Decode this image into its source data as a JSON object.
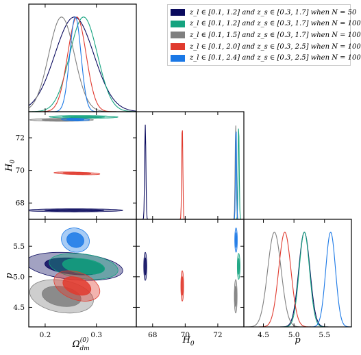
{
  "chart_data": {
    "type": "corner",
    "parameters": [
      {
        "key": "omega",
        "label": "Ω_dm^(0)",
        "range": [
          0.168,
          0.378
        ],
        "ticks": [
          0.2,
          0.3
        ],
        "tick_labels": [
          "0.2",
          "0.3"
        ]
      },
      {
        "key": "H0",
        "label": "H_0",
        "range": [
          67.0,
          73.6
        ],
        "ticks": [
          68,
          70,
          72
        ],
        "tick_labels": [
          "68",
          "70",
          "72"
        ]
      },
      {
        "key": "p",
        "label": "p",
        "range": [
          4.18,
          5.94
        ],
        "ticks": [
          4.5,
          5.0,
          5.5
        ],
        "tick_labels": [
          "4.5",
          "5.0",
          "5.5"
        ]
      }
    ],
    "series": [
      {
        "name": "z_l ∈ [0.1, 1.2] and z_s ∈ [0.3, 1.7] when N = 50",
        "color": "#0a0a5e",
        "omega": {
          "mean": 0.257,
          "sd": 0.038
        },
        "H0": {
          "mean": 67.55,
          "sd": 0.038
        },
        "p": {
          "mean": 5.17,
          "sd": 0.092
        },
        "corr": {
          "H0_omega": 0.0,
          "p_omega": -0.3,
          "p_H0": 0.0
        }
      },
      {
        "name": "z_l ∈ [0.1, 1.2] and z_s ∈ [0.3, 1.7] when N = 100",
        "color": "#14a37f",
        "omega": {
          "mean": 0.275,
          "sd": 0.027
        },
        "H0": {
          "mean": 73.28,
          "sd": 0.034
        },
        "p": {
          "mean": 5.17,
          "sd": 0.085
        },
        "corr": {
          "H0_omega": -0.1,
          "p_omega": -0.3,
          "p_H0": 0.0
        }
      },
      {
        "name": "z_l ∈ [0.1, 1.5] and z_s ∈ [0.3, 1.7] when N = 100",
        "color": "#7f7f7f",
        "omega": {
          "mean": 0.232,
          "sd": 0.025
        },
        "H0": {
          "mean": 73.1,
          "sd": 0.035
        },
        "p": {
          "mean": 4.68,
          "sd": 0.11
        },
        "corr": {
          "H0_omega": 0.0,
          "p_omega": -0.25,
          "p_H0": 0.0
        }
      },
      {
        "name": "z_l ∈ [0.1, 2.0] and z_s ∈ [0.3, 2.5] when N = 100",
        "color": "#e03a2e",
        "omega": {
          "mean": 0.262,
          "sd": 0.018
        },
        "H0": {
          "mean": 69.82,
          "sd": 0.035
        },
        "p": {
          "mean": 4.85,
          "sd": 0.1
        },
        "corr": {
          "H0_omega": -0.45,
          "p_omega": -0.35,
          "p_H0": 0.0
        }
      },
      {
        "name": "z_l ∈ [0.1, 2.4] and z_s ∈ [0.3, 2.5] when N = 100",
        "color": "#1a78e6",
        "omega": {
          "mean": 0.259,
          "sd": 0.011
        },
        "H0": {
          "mean": 73.12,
          "sd": 0.032
        },
        "p": {
          "mean": 5.6,
          "sd": 0.08
        },
        "corr": {
          "H0_omega": -0.2,
          "p_omega": -0.1,
          "p_H0": 0.0
        }
      }
    ],
    "contour_levels_sigma": [
      1,
      2
    ],
    "legend_position": "top-right"
  }
}
